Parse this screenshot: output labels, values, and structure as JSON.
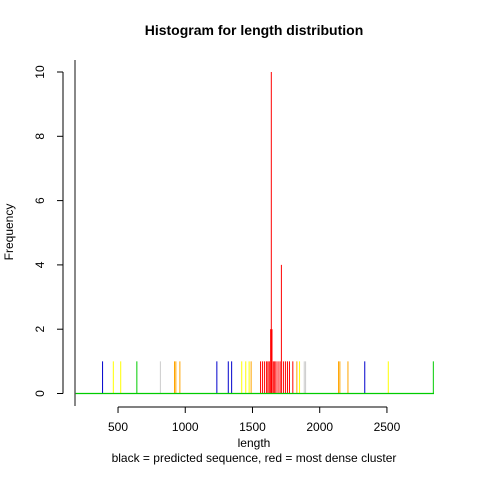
{
  "chart_data": {
    "type": "bar",
    "title": "Histogram for length distribution",
    "xlabel": "length",
    "subtitle": "black = predicted sequence, red = most dense cluster",
    "ylabel": "Frequency",
    "xlim": [
      180,
      2850
    ],
    "ylim": [
      0,
      10
    ],
    "x_ticks": [
      500,
      1000,
      1500,
      2000,
      2500
    ],
    "x_tick_labels": [
      "500",
      "1000",
      "1500",
      "2000",
      "2500"
    ],
    "y_ticks": [
      0,
      2,
      4,
      6,
      8,
      10
    ],
    "y_tick_labels": [
      "0",
      "2",
      "4",
      "6",
      "8",
      "10"
    ],
    "reference_line": {
      "x": 180,
      "color": "#555555"
    },
    "baseline_color": "#00cc00",
    "bars": [
      {
        "x": 180,
        "count": 1,
        "color": "#ffa500"
      },
      {
        "x": 385,
        "count": 1,
        "color": "#0000cc"
      },
      {
        "x": 465,
        "count": 1,
        "color": "#ffff00"
      },
      {
        "x": 520,
        "count": 1,
        "color": "#ffff00"
      },
      {
        "x": 640,
        "count": 1,
        "color": "#00cc00"
      },
      {
        "x": 815,
        "count": 1,
        "color": "#cccccc"
      },
      {
        "x": 920,
        "count": 1,
        "color": "#ffa500"
      },
      {
        "x": 930,
        "count": 1,
        "color": "#ffa500"
      },
      {
        "x": 960,
        "count": 1,
        "color": "#ffa500"
      },
      {
        "x": 1235,
        "count": 1,
        "color": "#0000cc"
      },
      {
        "x": 1320,
        "count": 1,
        "color": "#0000cc"
      },
      {
        "x": 1345,
        "count": 1,
        "color": "#0000cc"
      },
      {
        "x": 1420,
        "count": 1,
        "color": "#ffff00"
      },
      {
        "x": 1450,
        "count": 1,
        "color": "#ffff00"
      },
      {
        "x": 1475,
        "count": 1,
        "color": "#ffff00"
      },
      {
        "x": 1490,
        "count": 1,
        "color": "#ffa500"
      },
      {
        "x": 1560,
        "count": 1,
        "color": "#ff0000"
      },
      {
        "x": 1575,
        "count": 1,
        "color": "#ff0000"
      },
      {
        "x": 1590,
        "count": 1,
        "color": "#ff0000"
      },
      {
        "x": 1605,
        "count": 1,
        "color": "#ff0000"
      },
      {
        "x": 1615,
        "count": 1,
        "color": "#ff0000"
      },
      {
        "x": 1625,
        "count": 1,
        "color": "#ff0000"
      },
      {
        "x": 1635,
        "count": 2,
        "color": "#ff0000"
      },
      {
        "x": 1640,
        "count": 10,
        "color": "#ff0000"
      },
      {
        "x": 1645,
        "count": 2,
        "color": "#ff0000"
      },
      {
        "x": 1655,
        "count": 1,
        "color": "#ff0000"
      },
      {
        "x": 1665,
        "count": 1,
        "color": "#ff0000"
      },
      {
        "x": 1675,
        "count": 1,
        "color": "#ff0000"
      },
      {
        "x": 1690,
        "count": 1,
        "color": "#ff0000"
      },
      {
        "x": 1705,
        "count": 1,
        "color": "#ff0000"
      },
      {
        "x": 1715,
        "count": 4,
        "color": "#ff0000"
      },
      {
        "x": 1730,
        "count": 1,
        "color": "#ff0000"
      },
      {
        "x": 1745,
        "count": 1,
        "color": "#ff0000"
      },
      {
        "x": 1760,
        "count": 1,
        "color": "#ff0000"
      },
      {
        "x": 1775,
        "count": 1,
        "color": "#ff0000"
      },
      {
        "x": 1800,
        "count": 1,
        "color": "#ff0000"
      },
      {
        "x": 1830,
        "count": 1,
        "color": "#ffa500"
      },
      {
        "x": 1850,
        "count": 1,
        "color": "#ffff00"
      },
      {
        "x": 1885,
        "count": 1,
        "color": "#cccccc"
      },
      {
        "x": 1895,
        "count": 1,
        "color": "#cccccc"
      },
      {
        "x": 2140,
        "count": 1,
        "color": "#ffa500"
      },
      {
        "x": 2150,
        "count": 1,
        "color": "#ffa500"
      },
      {
        "x": 2210,
        "count": 1,
        "color": "#ffa500"
      },
      {
        "x": 2335,
        "count": 1,
        "color": "#0000cc"
      },
      {
        "x": 2510,
        "count": 1,
        "color": "#ffff00"
      },
      {
        "x": 2845,
        "count": 1,
        "color": "#00cc00"
      }
    ]
  }
}
